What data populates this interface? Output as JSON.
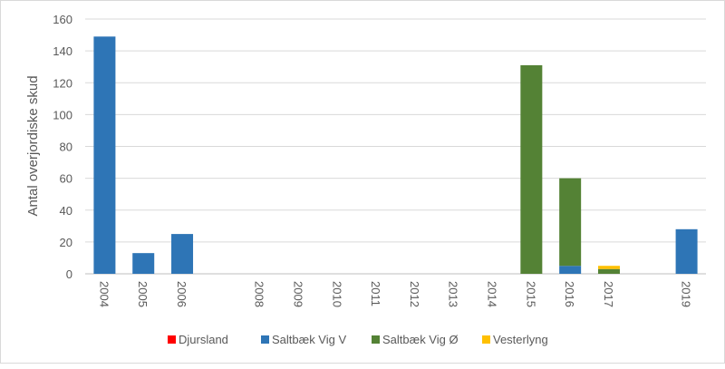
{
  "chart_data": {
    "type": "bar",
    "stacked": true,
    "title": "",
    "xlabel": "",
    "ylabel": "Antal overjordiske skud",
    "ylim": [
      0,
      160
    ],
    "yticks": [
      0,
      20,
      40,
      60,
      80,
      100,
      120,
      140,
      160
    ],
    "grid": true,
    "legend_position": "bottom",
    "categories": [
      "2004",
      "2005",
      "2006",
      "",
      "2008",
      "2009",
      "2010",
      "2011",
      "2012",
      "2013",
      "2014",
      "2015",
      "2016",
      "2017",
      "",
      "2019"
    ],
    "series": [
      {
        "name": "Djursland",
        "color": "#ff0000",
        "values": [
          0,
          0,
          0,
          0,
          0,
          0,
          0,
          0,
          0,
          0,
          0,
          0,
          0,
          0,
          0,
          0
        ]
      },
      {
        "name": "Saltbæk Vig V",
        "color": "#2e75b6",
        "values": [
          149,
          13,
          25,
          0,
          0,
          0,
          0,
          0,
          0,
          0,
          0,
          0,
          5,
          0,
          0,
          28
        ]
      },
      {
        "name": "Saltbæk Vig Ø",
        "color": "#548235",
        "values": [
          0,
          0,
          0,
          0,
          0,
          0,
          0,
          0,
          0,
          0,
          0,
          131,
          55,
          3,
          0,
          0
        ]
      },
      {
        "name": "Vesterlyng",
        "color": "#ffc000",
        "values": [
          0,
          0,
          0,
          0,
          0,
          0,
          0,
          0,
          0,
          0,
          0,
          0,
          0,
          2,
          0,
          0
        ]
      }
    ]
  }
}
